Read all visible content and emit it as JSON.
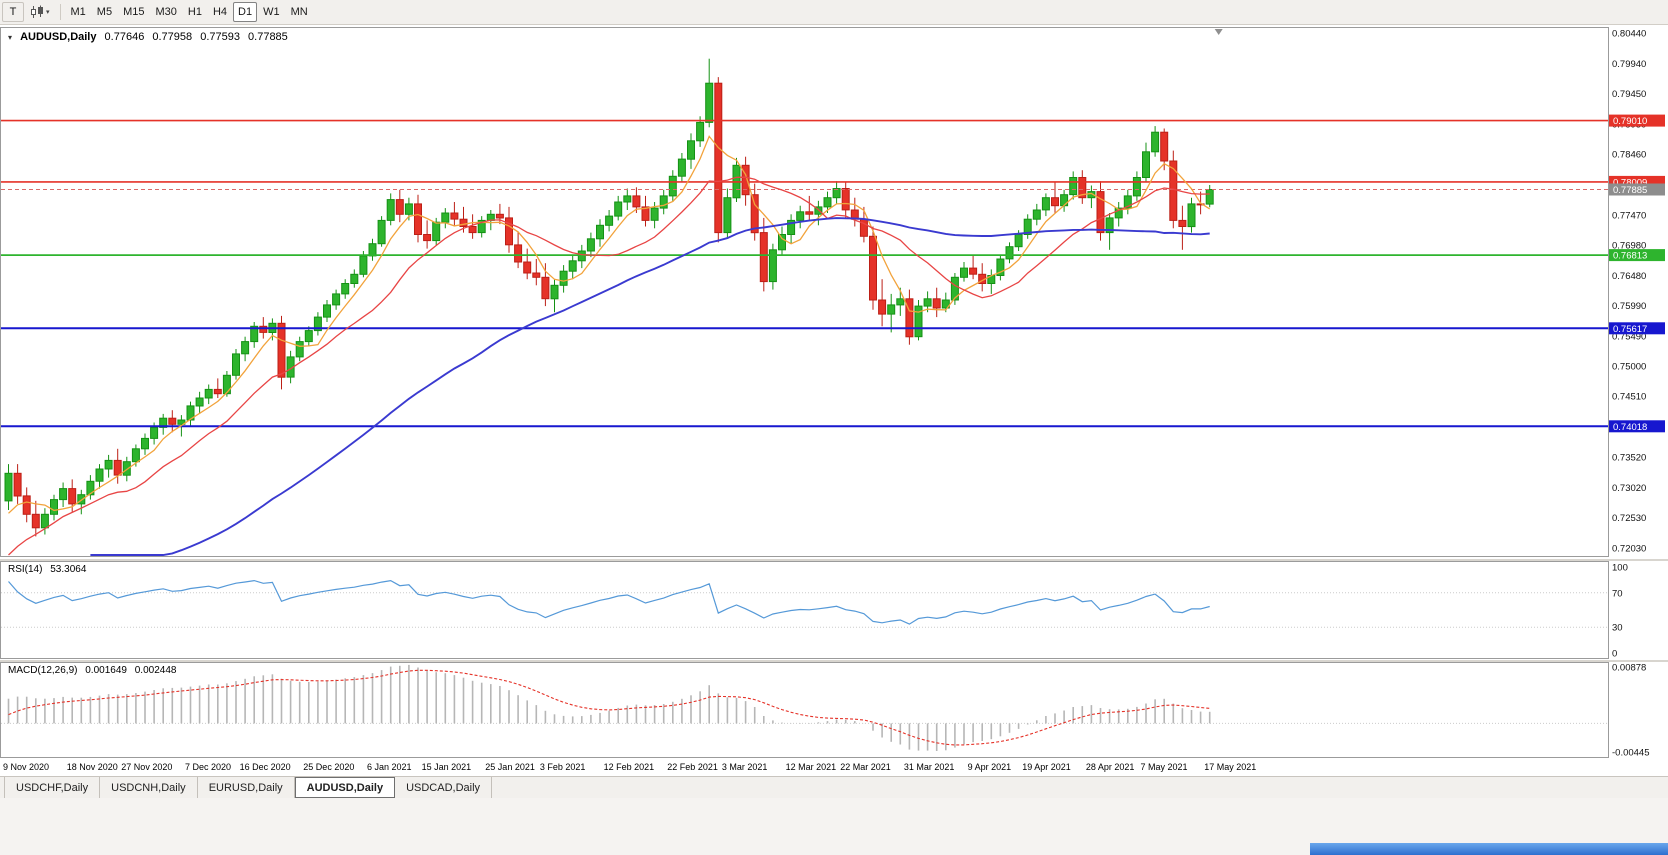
{
  "toolbar": {
    "text_tool_label": "T",
    "timeframes": [
      "M1",
      "M5",
      "M15",
      "M30",
      "H1",
      "H4",
      "D1",
      "W1",
      "MN"
    ],
    "active_timeframe": "D1"
  },
  "main_chart": {
    "symbol_label": "AUDUSD,Daily",
    "ohlc": {
      "open": "0.77646",
      "high": "0.77958",
      "low": "0.77593",
      "close": "0.77885"
    },
    "price_axis_labels": [
      "0.80440",
      "0.79940",
      "0.79450",
      "0.78950",
      "0.78460",
      "0.77960",
      "0.77470",
      "0.76980",
      "0.76480",
      "0.75990",
      "0.75490",
      "0.75000",
      "0.74510",
      "0.74010",
      "0.73520",
      "0.73020",
      "0.72530",
      "0.72030"
    ],
    "axis_top": 0.8044,
    "axis_bottom": 0.7203,
    "levels": [
      {
        "price": 0.7901,
        "label": "0.79010",
        "color": "#e53228",
        "width": 1.6
      },
      {
        "price": 0.78009,
        "label": "0.78009",
        "color": "#e53228",
        "width": 1.6
      },
      {
        "price": 0.76813,
        "label": "0.76813",
        "color": "#2eb42e",
        "width": 1.8
      },
      {
        "price": 0.75617,
        "label": "0.75617",
        "color": "#1717cf",
        "width": 2
      },
      {
        "price": 0.74018,
        "label": "0.74018",
        "color": "#1717cf",
        "width": 2
      }
    ],
    "current_price": {
      "value": 0.77885,
      "label": "0.77885",
      "tag_color": "#8d8d8d",
      "line_color": "#d96a6a"
    }
  },
  "chart_data": {
    "type": "candlestick",
    "symbol": "AUDUSD",
    "timeframe": "Daily",
    "colors": {
      "up": "#2db42d",
      "up_border": "#149114",
      "down": "#e53228",
      "down_border": "#bc1f16"
    },
    "moving_averages": [
      {
        "type": "sma",
        "period": 5,
        "color": "#f2a33c",
        "width": 1.3
      },
      {
        "type": "sma",
        "period": 13,
        "color": "#e84545",
        "width": 1.3
      },
      {
        "type": "sma",
        "period": 50,
        "color": "#3a3ad0",
        "width": 1.9
      }
    ],
    "warmup_closes": [
      0.7285,
      0.727,
      0.7255,
      0.724,
      0.7228,
      0.7215,
      0.72,
      0.7185,
      0.717,
      0.7155,
      0.714,
      0.7128,
      0.7115,
      0.7102,
      0.709,
      0.7078,
      0.7065,
      0.7055,
      0.7045,
      0.7038,
      0.7032,
      0.703,
      0.7035,
      0.7042,
      0.705,
      0.706,
      0.7072,
      0.7085,
      0.7098,
      0.7112,
      0.7125,
      0.714,
      0.7155,
      0.717,
      0.7185,
      0.72,
      0.7218,
      0.7235,
      0.7252,
      0.7268
    ],
    "candles": [
      [
        0.728,
        0.734,
        0.7265,
        0.7325
      ],
      [
        0.7325,
        0.734,
        0.7275,
        0.7288
      ],
      [
        0.7288,
        0.7302,
        0.7245,
        0.7258
      ],
      [
        0.7258,
        0.728,
        0.7222,
        0.7236
      ],
      [
        0.7236,
        0.7268,
        0.7225,
        0.7258
      ],
      [
        0.7258,
        0.729,
        0.7248,
        0.7282
      ],
      [
        0.7282,
        0.731,
        0.727,
        0.73
      ],
      [
        0.73,
        0.7315,
        0.7262,
        0.7275
      ],
      [
        0.7275,
        0.7298,
        0.7258,
        0.729
      ],
      [
        0.729,
        0.7322,
        0.7282,
        0.7312
      ],
      [
        0.7312,
        0.734,
        0.73,
        0.7332
      ],
      [
        0.7332,
        0.7355,
        0.7318,
        0.7346
      ],
      [
        0.7346,
        0.7365,
        0.7308,
        0.7322
      ],
      [
        0.7322,
        0.7352,
        0.7312,
        0.7344
      ],
      [
        0.7344,
        0.7372,
        0.7336,
        0.7365
      ],
      [
        0.7365,
        0.739,
        0.7355,
        0.7382
      ],
      [
        0.7382,
        0.7408,
        0.7372,
        0.74
      ],
      [
        0.74,
        0.7422,
        0.7388,
        0.7415
      ],
      [
        0.7415,
        0.7428,
        0.7392,
        0.7405
      ],
      [
        0.7405,
        0.742,
        0.7385,
        0.7412
      ],
      [
        0.7412,
        0.7442,
        0.7402,
        0.7435
      ],
      [
        0.7435,
        0.7458,
        0.7422,
        0.7448
      ],
      [
        0.7448,
        0.747,
        0.7438,
        0.7462
      ],
      [
        0.7462,
        0.748,
        0.7448,
        0.7455
      ],
      [
        0.7455,
        0.7492,
        0.745,
        0.7485
      ],
      [
        0.7485,
        0.7528,
        0.7478,
        0.752
      ],
      [
        0.752,
        0.7548,
        0.7508,
        0.754
      ],
      [
        0.754,
        0.7572,
        0.753,
        0.7565
      ],
      [
        0.7565,
        0.758,
        0.7545,
        0.7555
      ],
      [
        0.7555,
        0.7578,
        0.7542,
        0.757
      ],
      [
        0.757,
        0.7582,
        0.7462,
        0.7482
      ],
      [
        0.7482,
        0.7525,
        0.7472,
        0.7515
      ],
      [
        0.7515,
        0.7548,
        0.7508,
        0.754
      ],
      [
        0.754,
        0.7565,
        0.7532,
        0.7558
      ],
      [
        0.7558,
        0.7588,
        0.755,
        0.758
      ],
      [
        0.758,
        0.7608,
        0.7572,
        0.76
      ],
      [
        0.76,
        0.7625,
        0.7592,
        0.7618
      ],
      [
        0.7618,
        0.7642,
        0.761,
        0.7635
      ],
      [
        0.7635,
        0.7658,
        0.7628,
        0.765
      ],
      [
        0.765,
        0.7688,
        0.7645,
        0.768
      ],
      [
        0.768,
        0.7708,
        0.7672,
        0.77
      ],
      [
        0.77,
        0.7745,
        0.7695,
        0.7738
      ],
      [
        0.7738,
        0.7782,
        0.773,
        0.7772
      ],
      [
        0.7772,
        0.7788,
        0.7735,
        0.7748
      ],
      [
        0.7748,
        0.7775,
        0.7738,
        0.7765
      ],
      [
        0.7765,
        0.778,
        0.7702,
        0.7715
      ],
      [
        0.7715,
        0.7738,
        0.7692,
        0.7705
      ],
      [
        0.7705,
        0.7742,
        0.7698,
        0.7735
      ],
      [
        0.7735,
        0.7758,
        0.7725,
        0.775
      ],
      [
        0.775,
        0.7768,
        0.7728,
        0.774
      ],
      [
        0.774,
        0.776,
        0.7718,
        0.7728
      ],
      [
        0.7728,
        0.7748,
        0.7708,
        0.7718
      ],
      [
        0.7718,
        0.7745,
        0.771,
        0.7738
      ],
      [
        0.7738,
        0.7755,
        0.7722,
        0.7748
      ],
      [
        0.7748,
        0.7765,
        0.7732,
        0.7742
      ],
      [
        0.7742,
        0.776,
        0.7685,
        0.7698
      ],
      [
        0.7698,
        0.772,
        0.766,
        0.767
      ],
      [
        0.767,
        0.7692,
        0.7642,
        0.7652
      ],
      [
        0.7652,
        0.7675,
        0.7632,
        0.7645
      ],
      [
        0.7645,
        0.7668,
        0.7598,
        0.761
      ],
      [
        0.761,
        0.7642,
        0.7588,
        0.7632
      ],
      [
        0.7632,
        0.7665,
        0.762,
        0.7655
      ],
      [
        0.7655,
        0.7682,
        0.7642,
        0.7672
      ],
      [
        0.7672,
        0.7698,
        0.766,
        0.7688
      ],
      [
        0.7688,
        0.7718,
        0.7678,
        0.7708
      ],
      [
        0.7708,
        0.774,
        0.7695,
        0.773
      ],
      [
        0.773,
        0.7755,
        0.772,
        0.7745
      ],
      [
        0.7745,
        0.7778,
        0.7738,
        0.7768
      ],
      [
        0.7768,
        0.779,
        0.7755,
        0.7778
      ],
      [
        0.7778,
        0.7792,
        0.775,
        0.776
      ],
      [
        0.776,
        0.7778,
        0.7728,
        0.7738
      ],
      [
        0.7738,
        0.7768,
        0.7725,
        0.7758
      ],
      [
        0.7758,
        0.7788,
        0.7748,
        0.7778
      ],
      [
        0.7778,
        0.782,
        0.7768,
        0.781
      ],
      [
        0.781,
        0.7848,
        0.78,
        0.7838
      ],
      [
        0.7838,
        0.788,
        0.7822,
        0.7868
      ],
      [
        0.7868,
        0.7908,
        0.7858,
        0.7898
      ],
      [
        0.7898,
        0.8002,
        0.789,
        0.7962
      ],
      [
        0.7962,
        0.7972,
        0.7702,
        0.7718
      ],
      [
        0.7718,
        0.779,
        0.771,
        0.7775
      ],
      [
        0.7775,
        0.784,
        0.7768,
        0.7828
      ],
      [
        0.7828,
        0.7842,
        0.7762,
        0.778
      ],
      [
        0.778,
        0.7798,
        0.7705,
        0.7718
      ],
      [
        0.7718,
        0.7742,
        0.7622,
        0.7638
      ],
      [
        0.7638,
        0.77,
        0.7625,
        0.769
      ],
      [
        0.769,
        0.7728,
        0.7682,
        0.7715
      ],
      [
        0.7715,
        0.7748,
        0.77,
        0.7738
      ],
      [
        0.7738,
        0.7762,
        0.7725,
        0.7752
      ],
      [
        0.7752,
        0.7778,
        0.7738,
        0.7748
      ],
      [
        0.7748,
        0.777,
        0.773,
        0.776
      ],
      [
        0.776,
        0.7785,
        0.775,
        0.7775
      ],
      [
        0.7775,
        0.7802,
        0.7765,
        0.779
      ],
      [
        0.779,
        0.78,
        0.7742,
        0.7755
      ],
      [
        0.7755,
        0.7775,
        0.7728,
        0.774
      ],
      [
        0.774,
        0.776,
        0.7702,
        0.7712
      ],
      [
        0.7712,
        0.7728,
        0.7592,
        0.7608
      ],
      [
        0.7608,
        0.7642,
        0.7565,
        0.7585
      ],
      [
        0.7585,
        0.7618,
        0.7555,
        0.76
      ],
      [
        0.76,
        0.7628,
        0.7582,
        0.761
      ],
      [
        0.761,
        0.7625,
        0.7535,
        0.7548
      ],
      [
        0.7548,
        0.7608,
        0.7542,
        0.7598
      ],
      [
        0.7598,
        0.7622,
        0.7588,
        0.761
      ],
      [
        0.761,
        0.7628,
        0.758,
        0.7595
      ],
      [
        0.7595,
        0.762,
        0.7588,
        0.7608
      ],
      [
        0.7608,
        0.7652,
        0.76,
        0.7645
      ],
      [
        0.7645,
        0.767,
        0.7638,
        0.766
      ],
      [
        0.766,
        0.768,
        0.7642,
        0.765
      ],
      [
        0.765,
        0.7668,
        0.7622,
        0.7635
      ],
      [
        0.7635,
        0.7658,
        0.7618,
        0.7648
      ],
      [
        0.7648,
        0.7682,
        0.764,
        0.7675
      ],
      [
        0.7675,
        0.7702,
        0.7668,
        0.7695
      ],
      [
        0.7695,
        0.7722,
        0.7688,
        0.7715
      ],
      [
        0.7715,
        0.7748,
        0.7708,
        0.774
      ],
      [
        0.774,
        0.7765,
        0.773,
        0.7755
      ],
      [
        0.7755,
        0.7782,
        0.7745,
        0.7775
      ],
      [
        0.7775,
        0.78,
        0.775,
        0.7762
      ],
      [
        0.7762,
        0.7788,
        0.7752,
        0.778
      ],
      [
        0.778,
        0.7818,
        0.7772,
        0.7808
      ],
      [
        0.7808,
        0.782,
        0.7765,
        0.7775
      ],
      [
        0.7775,
        0.7795,
        0.7758,
        0.7785
      ],
      [
        0.7785,
        0.7802,
        0.7705,
        0.7718
      ],
      [
        0.7718,
        0.775,
        0.769,
        0.7742
      ],
      [
        0.7742,
        0.7768,
        0.7728,
        0.7758
      ],
      [
        0.7758,
        0.7788,
        0.7748,
        0.7778
      ],
      [
        0.7778,
        0.7818,
        0.777,
        0.7808
      ],
      [
        0.7808,
        0.7865,
        0.78,
        0.785
      ],
      [
        0.785,
        0.7892,
        0.7842,
        0.7882
      ],
      [
        0.7882,
        0.7888,
        0.782,
        0.7835
      ],
      [
        0.7835,
        0.7852,
        0.7725,
        0.7738
      ],
      [
        0.7738,
        0.7762,
        0.769,
        0.7728
      ],
      [
        0.7728,
        0.7775,
        0.7718,
        0.7765
      ],
      [
        0.7765,
        0.7785,
        0.7748,
        0.77646
      ],
      [
        0.77646,
        0.77958,
        0.77593,
        0.77885
      ]
    ]
  },
  "rsi_panel": {
    "label": "RSI(14)",
    "value": "53.3064",
    "period": 14,
    "axis_labels": [
      "100",
      "70",
      "30",
      "0"
    ],
    "level_lines": [
      70,
      30
    ],
    "line_color": "#5599d8"
  },
  "macd_panel": {
    "label": "MACD(12,26,9)",
    "value_main": "0.001649",
    "value_signal": "0.002448",
    "fast": 12,
    "slow": 26,
    "signal": 9,
    "axis_top_label": "0.00878",
    "axis_bottom_label": "-0.00445",
    "axis_top": 0.00878,
    "axis_bottom": -0.00445,
    "histogram_color": "#b6b6b6",
    "signal_color": "#e53228"
  },
  "date_axis": [
    {
      "label": "9 Nov 2020",
      "index": 0
    },
    {
      "label": "18 Nov 2020",
      "index": 7
    },
    {
      "label": "27 Nov 2020",
      "index": 13
    },
    {
      "label": "7 Dec 2020",
      "index": 20
    },
    {
      "label": "16 Dec 2020",
      "index": 26
    },
    {
      "label": "25 Dec 2020",
      "index": 33
    },
    {
      "label": "6 Jan 2021",
      "index": 40
    },
    {
      "label": "15 Jan 2021",
      "index": 46
    },
    {
      "label": "25 Jan 2021",
      "index": 53
    },
    {
      "label": "3 Feb 2021",
      "index": 59
    },
    {
      "label": "12 Feb 2021",
      "index": 66
    },
    {
      "label": "22 Feb 2021",
      "index": 73
    },
    {
      "label": "3 Mar 2021",
      "index": 79
    },
    {
      "label": "12 Mar 2021",
      "index": 86
    },
    {
      "label": "22 Mar 2021",
      "index": 92
    },
    {
      "label": "31 Mar 2021",
      "index": 99
    },
    {
      "label": "9 Apr 2021",
      "index": 106
    },
    {
      "label": "19 Apr 2021",
      "index": 112
    },
    {
      "label": "28 Apr 2021",
      "index": 119
    },
    {
      "label": "7 May 2021",
      "index": 125
    },
    {
      "label": "17 May 2021",
      "index": 132
    }
  ],
  "tabs": [
    {
      "label": "USDCHF,Daily",
      "active": false
    },
    {
      "label": "USDCNH,Daily",
      "active": false
    },
    {
      "label": "EURUSD,Daily",
      "active": false
    },
    {
      "label": "AUDUSD,Daily",
      "active": true
    },
    {
      "label": "USDCAD,Daily",
      "active": false
    }
  ]
}
